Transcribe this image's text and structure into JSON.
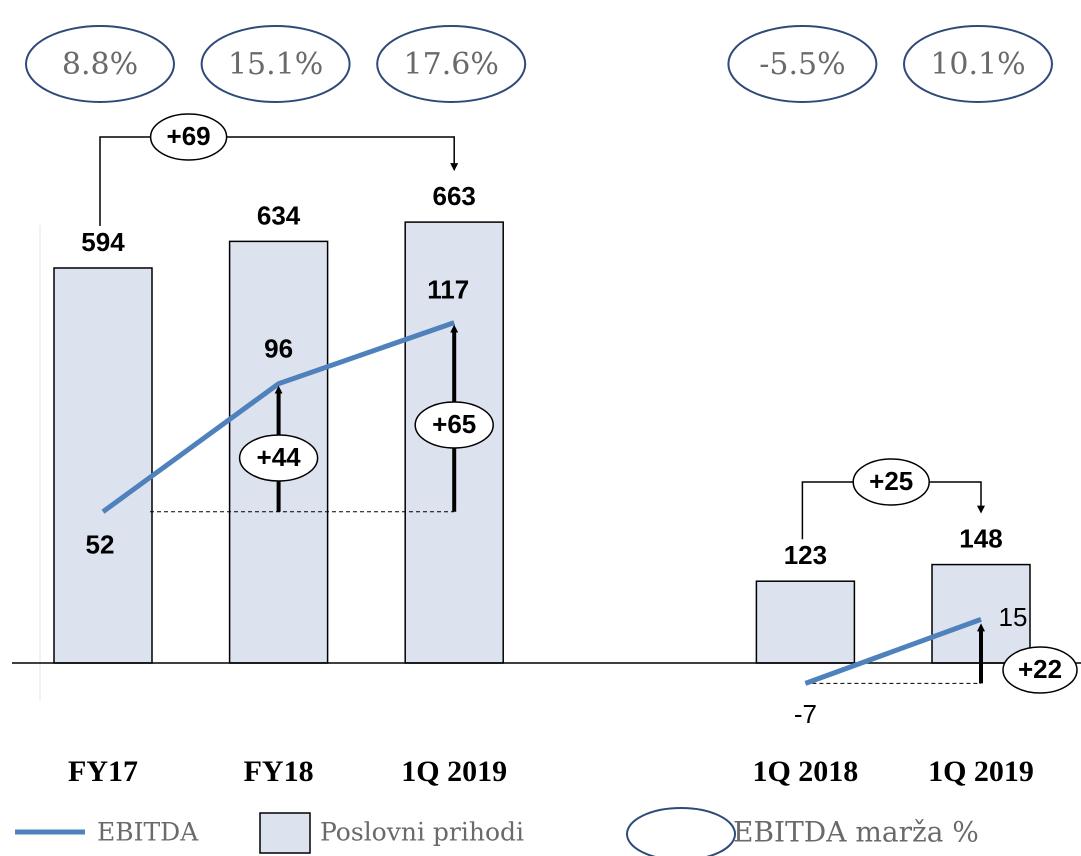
{
  "chart_data": {
    "type": "bar",
    "categories": [
      "FY17",
      "FY18",
      "1Q 2019",
      null,
      "1Q 2018",
      "1Q 2019"
    ],
    "series": [
      {
        "name": "Poslovni prihodi",
        "color": "#dce3ef",
        "values": [
          594,
          634,
          663,
          null,
          123,
          148
        ]
      },
      {
        "name": "EBITDA",
        "type": "line",
        "axis": "y2",
        "color": "#4f81bd",
        "values": [
          52,
          96,
          117,
          null,
          -7,
          15
        ]
      }
    ],
    "margins": {
      "name": "EBITDA marža %",
      "color": "#2e4a7a",
      "values": [
        8.8,
        15.1,
        17.6,
        null,
        -5.5,
        10.1
      ],
      "value_labels": [
        "8.8%",
        "15.1%",
        "17.6%",
        null,
        "-5.5%",
        "10.1%"
      ]
    },
    "changes": [
      {
        "value": 69,
        "label": "+69"
      },
      {
        "value": 44,
        "label": "+44"
      },
      {
        "value": 65,
        "label": "+65"
      },
      {
        "value": 25,
        "label": "+25"
      },
      {
        "value": 22,
        "label": "+22"
      }
    ],
    "ylim": [
      0,
      700
    ],
    "y2lim": [
      0,
      160
    ]
  }
}
